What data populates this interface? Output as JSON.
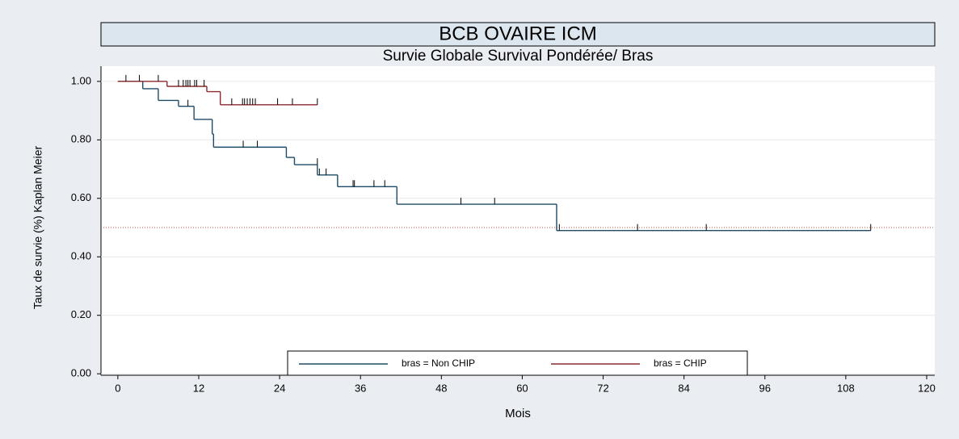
{
  "chart_data": {
    "type": "step",
    "title": "BCB OVAIRE ICM",
    "subtitle": "Survie Globale Survival Pondérée/ Bras",
    "xlabel": "Mois",
    "ylabel": "Taux de survie (%) Kaplan Meier",
    "xlim": [
      -2.5,
      121.2
    ],
    "ylim": [
      -0.005,
      1.052
    ],
    "xticks": [
      0,
      12,
      24,
      36,
      48,
      60,
      72,
      84,
      96,
      108,
      120
    ],
    "yticks": [
      {
        "value": 0,
        "label": "0.00"
      },
      {
        "value": 0.2,
        "label": "0.20"
      },
      {
        "value": 0.4,
        "label": "0.40"
      },
      {
        "value": 0.6,
        "label": "0.60"
      },
      {
        "value": 0.8,
        "label": "0.80"
      },
      {
        "value": 1,
        "label": "1.00"
      }
    ],
    "reference_line": 0.5,
    "series": [
      {
        "name": "bras = Non CHIP",
        "color": "#1f4a66",
        "x": [
          0,
          3.7,
          6.0,
          9.0,
          11.3,
          14.0,
          14.2,
          25.0,
          26.2,
          29.6,
          32.6,
          41.4,
          65.1
        ],
        "values": [
          1.0,
          0.975,
          0.935,
          0.915,
          0.87,
          0.82,
          0.775,
          0.74,
          0.715,
          0.68,
          0.64,
          0.58,
          0.49
        ],
        "censored_x": [
          10.4,
          18.6,
          20.7,
          29.6,
          29.9,
          30.9,
          34.9,
          35.1,
          38.0,
          39.6,
          50.9,
          55.9,
          65.5,
          77.1,
          87.3,
          111.7
        ],
        "censored_values": [
          0.915,
          0.775,
          0.775,
          0.715,
          0.68,
          0.68,
          0.64,
          0.64,
          0.64,
          0.64,
          0.58,
          0.58,
          0.49,
          0.49,
          0.49,
          0.49
        ]
      },
      {
        "name": "bras = CHIP",
        "color": "#8b2a2f",
        "x": [
          0,
          7.3,
          13.2,
          15.2
        ],
        "values": [
          1.0,
          0.983,
          0.965,
          0.92
        ],
        "censored_x": [
          1.2,
          3.2,
          6.0,
          9.0,
          9.7,
          10.1,
          10.4,
          10.7,
          11.4,
          11.7,
          12.8,
          16.9,
          18.5,
          18.8,
          19.2,
          19.6,
          20.0,
          20.4,
          23.7,
          25.9,
          29.6
        ],
        "censored_values": [
          1.0,
          1.0,
          1.0,
          0.983,
          0.983,
          0.983,
          0.983,
          0.983,
          0.983,
          0.983,
          0.983,
          0.92,
          0.92,
          0.92,
          0.92,
          0.92,
          0.92,
          0.92,
          0.92,
          0.92,
          0.92
        ]
      }
    ]
  }
}
